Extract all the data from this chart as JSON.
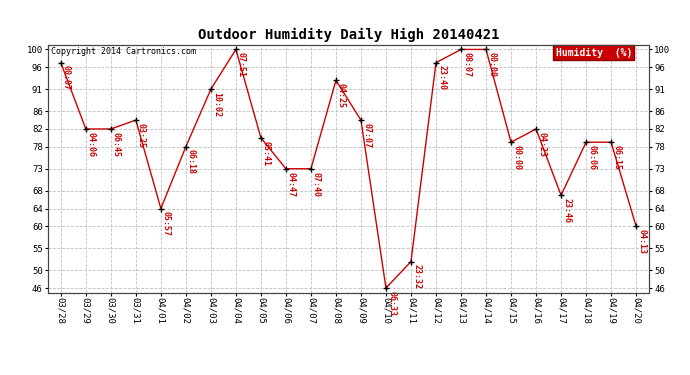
{
  "title": "Outdoor Humidity Daily High 20140421",
  "copyright": "Copyright 2014 Cartronics.com",
  "legend_label": "Humidity  (%)",
  "background_color": "#ffffff",
  "plot_bg_color": "#ffffff",
  "grid_color": "#c0c0c0",
  "line_color": "#cc0000",
  "marker_color": "#000000",
  "label_color": "#cc0000",
  "x_labels": [
    "03/28",
    "03/29",
    "03/30",
    "03/31",
    "04/01",
    "04/02",
    "04/03",
    "04/04",
    "04/05",
    "04/06",
    "04/07",
    "04/08",
    "04/09",
    "04/10",
    "04/11",
    "04/12",
    "04/13",
    "04/14",
    "04/15",
    "04/16",
    "04/17",
    "04/18",
    "04/19",
    "04/20"
  ],
  "y_values": [
    97,
    82,
    82,
    84,
    64,
    78,
    91,
    100,
    80,
    73,
    73,
    93,
    84,
    46,
    52,
    97,
    100,
    100,
    79,
    82,
    67,
    79,
    79,
    60
  ],
  "point_labels": [
    "00:07",
    "04:06",
    "06:45",
    "03:25",
    "05:57",
    "06:18",
    "10:02",
    "07:51",
    "05:41",
    "04:47",
    "07:40",
    "04:25",
    "07:07",
    "06:33",
    "23:32",
    "23:40",
    "08:07",
    "00:00",
    "00:00",
    "04:23",
    "23:46",
    "06:06",
    "06:15",
    "04:13"
  ],
  "ylim_min": 45,
  "ylim_max": 101,
  "yticks": [
    46,
    50,
    55,
    60,
    64,
    68,
    73,
    78,
    82,
    86,
    91,
    96,
    100
  ],
  "title_fontsize": 10,
  "axis_fontsize": 6.5,
  "label_fontsize": 6,
  "copyright_fontsize": 6
}
